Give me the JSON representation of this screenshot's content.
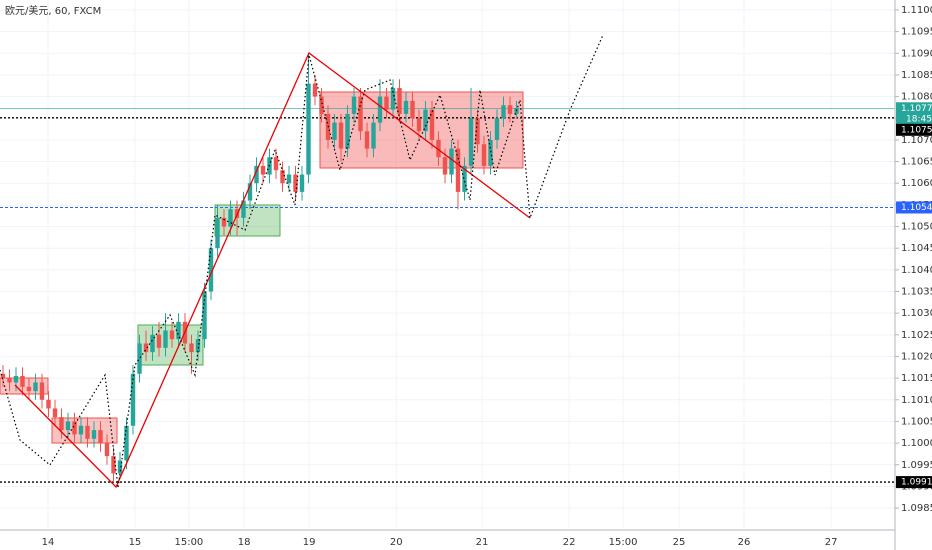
{
  "chart_data": {
    "type": "candlestick",
    "title": "欧元/美元, 60, FXCM",
    "up_color": "#26a69a",
    "down_color": "#ef5350",
    "open": [
      1.1016,
      1.1015,
      1.1014,
      1.10155,
      1.1013,
      1.1012,
      1.1014,
      1.101,
      1.1008,
      1.1006,
      1.1003,
      1.1005,
      1.1002,
      1.1004,
      1.1001,
      1.1003,
      1.1,
      1.0997,
      1.0993,
      1.0996,
      1.1004,
      1.1016,
      1.1023,
      1.1021,
      1.1025,
      1.1022,
      1.1026,
      1.1024,
      1.1028,
      1.1023,
      1.1021,
      1.1024,
      1.1035,
      1.1045,
      1.1052,
      1.105,
      1.1054,
      1.1052,
      1.1056,
      1.106,
      1.1064,
      1.1062,
      1.1066,
      1.1063,
      1.106,
      1.1062,
      1.1058,
      1.1062,
      1.1083,
      1.108,
      1.1076,
      1.107,
      1.1074,
      1.1068,
      1.1076,
      1.108,
      1.1072,
      1.1068,
      1.1074,
      1.108,
      1.1077,
      1.1082,
      1.1076,
      1.1079,
      1.1075,
      1.1072,
      1.1077,
      1.107,
      1.1066,
      1.1062,
      1.1068,
      1.1058,
      1.1064,
      1.1075,
      1.1069,
      1.1064,
      1.107,
      1.1075,
      1.1078,
      1.1076
    ],
    "high": [
      1.1018,
      1.1017,
      1.10175,
      1.10175,
      1.1015,
      1.1016,
      1.1016,
      1.1012,
      1.101,
      1.1008,
      1.1007,
      1.1007,
      1.1006,
      1.1006,
      1.1005,
      1.1005,
      1.1002,
      1.0999,
      1.0998,
      1.1006,
      1.1018,
      1.1025,
      1.1026,
      1.1027,
      1.1028,
      1.103,
      1.1028,
      1.103,
      1.103,
      1.1025,
      1.1026,
      1.1037,
      1.1047,
      1.1055,
      1.1054,
      1.1056,
      1.1056,
      1.1058,
      1.1062,
      1.1066,
      1.1066,
      1.1068,
      1.1068,
      1.1065,
      1.1064,
      1.1064,
      1.1064,
      1.109,
      1.1085,
      1.1082,
      1.1078,
      1.1076,
      1.1076,
      1.1078,
      1.1082,
      1.1082,
      1.1074,
      1.1076,
      1.1084,
      1.1082,
      1.1084,
      1.1084,
      1.1081,
      1.1081,
      1.1077,
      1.1079,
      1.1079,
      1.1072,
      1.1068,
      1.107,
      1.107,
      1.1066,
      1.1082,
      1.1077,
      1.1071,
      1.1072,
      1.1077,
      1.108,
      1.108,
      1.1079
    ],
    "low": [
      1.1013,
      1.1012,
      1.1012,
      1.1011,
      1.101,
      1.101,
      1.1008,
      1.1006,
      1.1004,
      1.1001,
      1.1001,
      1.1,
      1.1,
      1.0999,
      1.0999,
      1.0998,
      1.0995,
      1.0991,
      1.0992,
      1.0994,
      1.1002,
      1.1014,
      1.1019,
      1.1019,
      1.102,
      1.102,
      1.1022,
      1.1022,
      1.1021,
      1.1016,
      1.1019,
      1.1022,
      1.1033,
      1.1043,
      1.1048,
      1.1048,
      1.1048,
      1.105,
      1.1054,
      1.1058,
      1.106,
      1.106,
      1.1061,
      1.1058,
      1.1058,
      1.1056,
      1.1056,
      1.106,
      1.1078,
      1.1074,
      1.1068,
      1.1068,
      1.1065,
      1.1066,
      1.1074,
      1.107,
      1.1066,
      1.1066,
      1.1072,
      1.1075,
      1.1075,
      1.1074,
      1.1074,
      1.1073,
      1.107,
      1.107,
      1.1068,
      1.1064,
      1.106,
      1.106,
      1.1054,
      1.1056,
      1.1062,
      1.1067,
      1.1062,
      1.1062,
      1.1068,
      1.1073,
      1.1074,
      1.1075
    ],
    "close": [
      1.1015,
      1.1014,
      1.10155,
      1.1013,
      1.1012,
      1.1014,
      1.101,
      1.1008,
      1.1006,
      1.1003,
      1.1005,
      1.1002,
      1.1004,
      1.1001,
      1.1003,
      1.1,
      1.0997,
      1.0993,
      1.0996,
      1.1004,
      1.1016,
      1.1023,
      1.1021,
      1.1025,
      1.1022,
      1.1026,
      1.1024,
      1.1028,
      1.1023,
      1.1021,
      1.1024,
      1.1035,
      1.1045,
      1.1052,
      1.105,
      1.1054,
      1.1052,
      1.1056,
      1.106,
      1.1064,
      1.1062,
      1.1066,
      1.1063,
      1.106,
      1.1062,
      1.1058,
      1.1062,
      1.1083,
      1.108,
      1.1076,
      1.107,
      1.1074,
      1.1068,
      1.1076,
      1.108,
      1.1072,
      1.1068,
      1.1074,
      1.108,
      1.1077,
      1.1082,
      1.1076,
      1.1079,
      1.1075,
      1.1072,
      1.1077,
      1.107,
      1.1066,
      1.1062,
      1.1068,
      1.1058,
      1.1064,
      1.1075,
      1.1069,
      1.1064,
      1.107,
      1.1075,
      1.1078,
      1.1076,
      1.10773
    ],
    "xlim": [
      -0.46,
      137.23
    ],
    "xticks": [
      {
        "value": 6.92,
        "label": "14"
      },
      {
        "value": 20.3,
        "label": "15"
      },
      {
        "value": 28.6,
        "label": "15:00"
      },
      {
        "value": 37.1,
        "label": "18"
      },
      {
        "value": 47.1,
        "label": "19"
      },
      {
        "value": 60.5,
        "label": "20"
      },
      {
        "value": 73.7,
        "label": "21"
      },
      {
        "value": 87.1,
        "label": "22"
      },
      {
        "value": 95.4,
        "label": "15:00"
      },
      {
        "value": 104,
        "label": "25"
      },
      {
        "value": 114,
        "label": "26"
      },
      {
        "value": 127.4,
        "label": "27"
      }
    ],
    "ylim": [
      1.09804,
      1.11023
    ],
    "yticks": [
      {
        "value": 1.0985,
        "label": "1.09850"
      },
      {
        "value": 1.099,
        "label": "1.09900"
      },
      {
        "value": 1.0995,
        "label": "1.09950"
      },
      {
        "value": 1.1,
        "label": "1.10000"
      },
      {
        "value": 1.1005,
        "label": "1.10050"
      },
      {
        "value": 1.101,
        "label": "1.10100"
      },
      {
        "value": 1.1015,
        "label": "1.10150"
      },
      {
        "value": 1.102,
        "label": "1.10200"
      },
      {
        "value": 1.1025,
        "label": "1.10250"
      },
      {
        "value": 1.103,
        "label": "1.10300"
      },
      {
        "value": 1.1035,
        "label": "1.10350"
      },
      {
        "value": 1.104,
        "label": "1.10400"
      },
      {
        "value": 1.1045,
        "label": "1.10450"
      },
      {
        "value": 1.105,
        "label": "1.10500"
      },
      {
        "value": 1.1055,
        "label": "1.10550"
      },
      {
        "value": 1.106,
        "label": "1.10600"
      },
      {
        "value": 1.1065,
        "label": "1.10650"
      },
      {
        "value": 1.107,
        "label": "1.10700"
      },
      {
        "value": 1.1075,
        "label": "1.10750"
      },
      {
        "value": 1.108,
        "label": "1.10800"
      },
      {
        "value": 1.1085,
        "label": "1.10850"
      },
      {
        "value": 1.109,
        "label": "1.10900"
      },
      {
        "value": 1.1095,
        "label": "1.10950"
      },
      {
        "value": 1.11,
        "label": "1.11000"
      }
    ],
    "grid": true,
    "levels": [
      {
        "value": 1.10773,
        "label": "1.10773",
        "color": "#26a69a"
      },
      {
        "value": 1.10751,
        "label": "1.10751",
        "color": "#000000"
      },
      {
        "value": 1.10544,
        "label": "1.10544",
        "color": "#2962ff"
      },
      {
        "value": 1.0991,
        "label": "1.09910",
        "color": "#000000"
      }
    ],
    "countdown": "18:45"
  }
}
